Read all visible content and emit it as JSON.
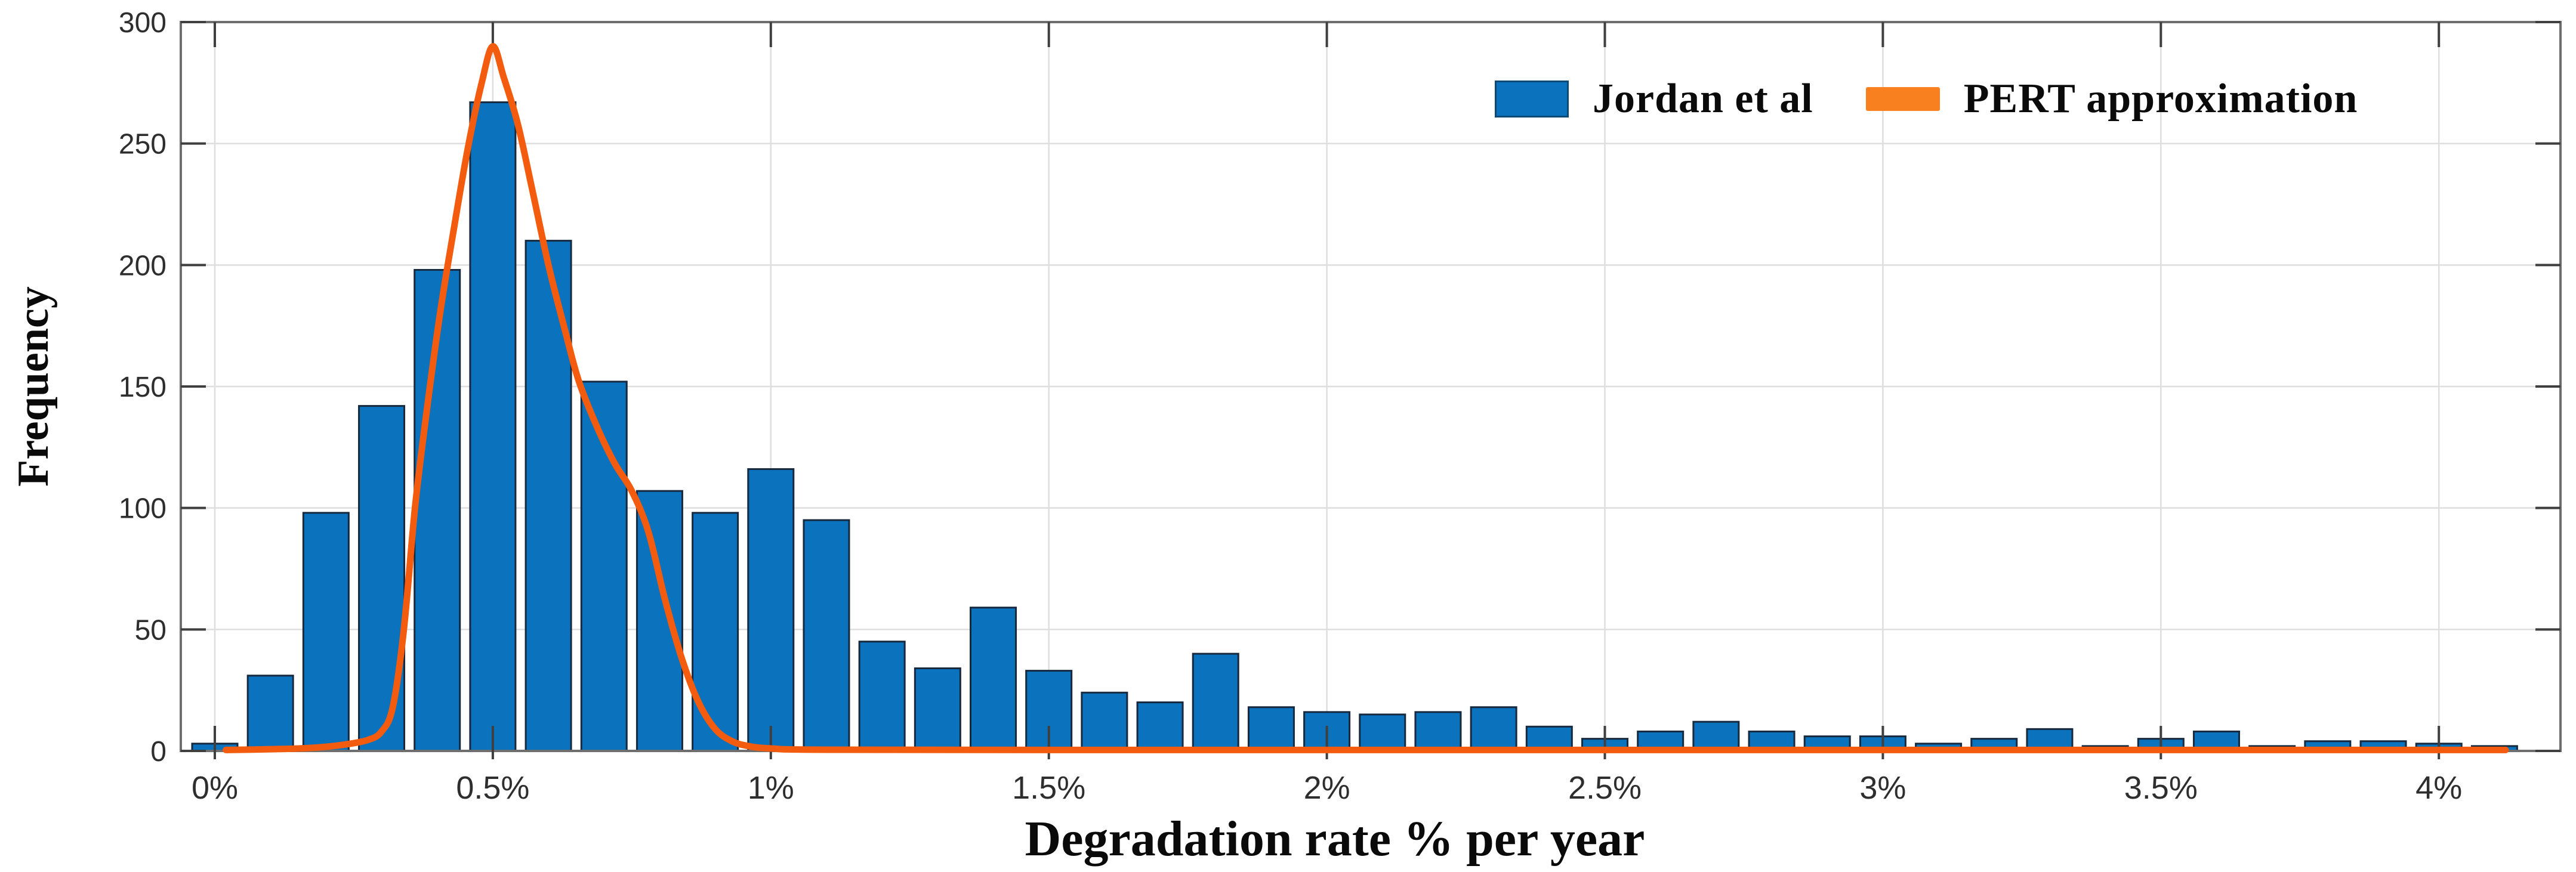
{
  "page": {
    "background": "#FFFFFF"
  },
  "colors": {
    "bar_fill": "#0B72BD",
    "bar_edge": "#16293E",
    "curve_orange": "#F35C0E",
    "legend_orange": "#F8801F",
    "gridline": "#DEDEDE",
    "plot_border": "#6E6E6E",
    "tick_mark": "#3F3F3F",
    "tick_label": "#2E2E2E",
    "title_text": "#0A0A0A"
  },
  "chart_data": {
    "type": "bar",
    "subtype": "histogram_with_line_overlay",
    "title": "",
    "xlabel": "Degradation rate % per year",
    "ylabel": "Frequency",
    "xlim": [
      -0.06,
      4.22
    ],
    "ylim": [
      0,
      300
    ],
    "grid": "on",
    "legend_position": "top-right-inside",
    "x_ticks": {
      "values": [
        0,
        0.5,
        1,
        1.5,
        2,
        2.5,
        3,
        3.5,
        4
      ],
      "labels": [
        "0%",
        "0.5%",
        "1%",
        "1.5%",
        "2%",
        "2.5%",
        "3%",
        "3.5%",
        "4%"
      ]
    },
    "y_ticks": {
      "values": [
        0,
        50,
        100,
        150,
        200,
        250,
        300
      ],
      "labels": [
        "0",
        "50",
        "100",
        "150",
        "200",
        "250",
        "300"
      ]
    },
    "bin_start": 0.0,
    "bin_step": 0.1,
    "categories": [
      0.0,
      0.1,
      0.2,
      0.3,
      0.4,
      0.5,
      0.6,
      0.7,
      0.8,
      0.9,
      1.0,
      1.1,
      1.2,
      1.3,
      1.4,
      1.5,
      1.6,
      1.7,
      1.8,
      1.9,
      2.0,
      2.1,
      2.2,
      2.3,
      2.4,
      2.5,
      2.6,
      2.7,
      2.8,
      2.9,
      3.0,
      3.1,
      3.2,
      3.3,
      3.4,
      3.5,
      3.6,
      3.7,
      3.8,
      3.9,
      4.0,
      4.1
    ],
    "series": [
      {
        "name": "Jordan et al",
        "type": "bar",
        "color": "#0B72BD",
        "edge_color": "#16293E",
        "values": [
          3,
          31,
          98,
          142,
          198,
          267,
          210,
          152,
          107,
          98,
          116,
          95,
          45,
          34,
          59,
          33,
          24,
          20,
          40,
          18,
          16,
          15,
          16,
          18,
          10,
          5,
          8,
          12,
          8,
          6,
          6,
          3,
          5,
          9,
          2,
          5,
          8,
          2,
          4,
          4,
          3,
          2
        ]
      },
      {
        "name": "PERT approximation",
        "type": "line",
        "color": "#F35C0E",
        "peak": {
          "x": 0.5,
          "y": 290
        },
        "points": [
          [
            0.02,
            0.4
          ],
          [
            0.1,
            0.7
          ],
          [
            0.17,
            1.2
          ],
          [
            0.23,
            2.5
          ],
          [
            0.275,
            4.5
          ],
          [
            0.3,
            8
          ],
          [
            0.32,
            18
          ],
          [
            0.34,
            50
          ],
          [
            0.36,
            100
          ],
          [
            0.38,
            138
          ],
          [
            0.405,
            180
          ],
          [
            0.43,
            215
          ],
          [
            0.455,
            248
          ],
          [
            0.48,
            275
          ],
          [
            0.5,
            290
          ],
          [
            0.52,
            277
          ],
          [
            0.545,
            258
          ],
          [
            0.57,
            232
          ],
          [
            0.6,
            200
          ],
          [
            0.63,
            173
          ],
          [
            0.655,
            152
          ],
          [
            0.69,
            132
          ],
          [
            0.72,
            118
          ],
          [
            0.75,
            107
          ],
          [
            0.78,
            90
          ],
          [
            0.81,
            62
          ],
          [
            0.84,
            38
          ],
          [
            0.87,
            20
          ],
          [
            0.9,
            9
          ],
          [
            0.93,
            4
          ],
          [
            0.96,
            2
          ],
          [
            1.0,
            1
          ],
          [
            1.1,
            0.5
          ],
          [
            1.6,
            0.4
          ],
          [
            2.6,
            0.4
          ],
          [
            4.12,
            0.4
          ]
        ]
      }
    ]
  }
}
